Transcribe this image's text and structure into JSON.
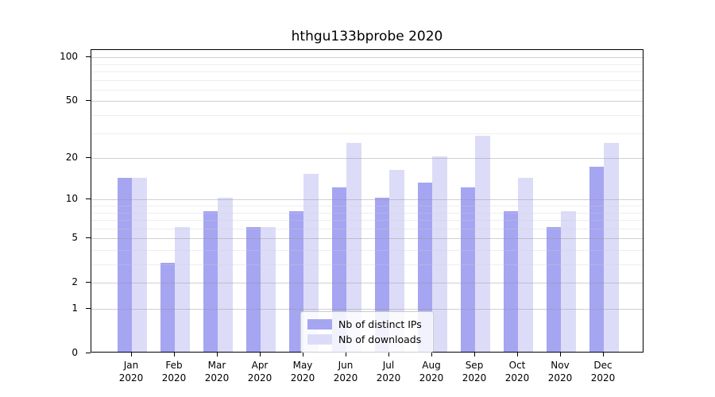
{
  "chart_data": {
    "type": "bar",
    "title": "hthgu133bprobe 2020",
    "categories": [
      "Jan 2020",
      "Feb 2020",
      "Mar 2020",
      "Apr 2020",
      "May 2020",
      "Jun 2020",
      "Jul 2020",
      "Aug 2020",
      "Sep 2020",
      "Oct 2020",
      "Nov 2020",
      "Dec 2020"
    ],
    "series": [
      {
        "name": "Nb of distinct IPs",
        "color": "#a5a5f2",
        "values": [
          14,
          3,
          8,
          6,
          8,
          12,
          10,
          13,
          12,
          8,
          6,
          17
        ]
      },
      {
        "name": "Nb of downloads",
        "color": "#dcdcf8",
        "values": [
          14,
          6,
          10,
          6,
          15,
          25,
          16,
          20,
          28,
          14,
          8,
          25
        ]
      }
    ],
    "xlabel": "",
    "ylabel": "",
    "yscale": "log1p",
    "ylim": [
      0,
      110
    ],
    "yticks": [
      100,
      50,
      20,
      10,
      5,
      2,
      1,
      0
    ],
    "minor_gridlines": [
      3,
      4,
      6,
      7,
      8,
      9,
      30,
      40,
      60,
      70,
      80,
      90
    ],
    "grid": true,
    "legend_position": "lower center"
  }
}
